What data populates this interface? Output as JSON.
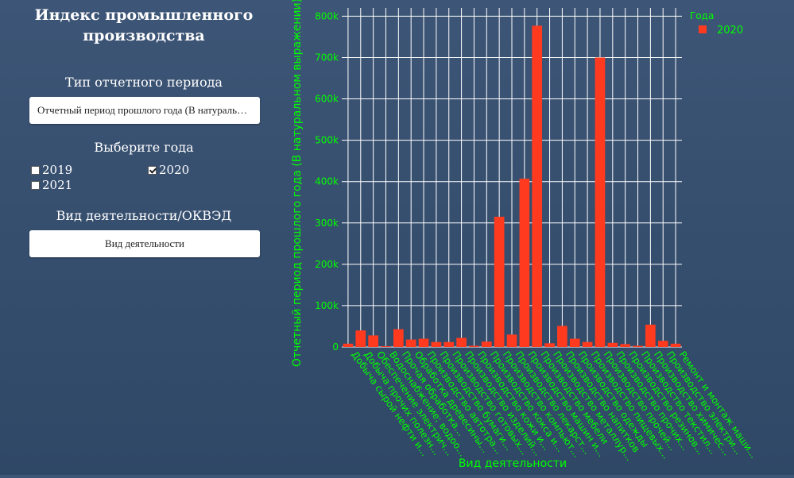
{
  "sidebar": {
    "title": "Индекс промышленного производства",
    "period_label": "Тип отчетного периода",
    "period_value": "Отчетный период прошлого года (В натуральном выражении)",
    "years_label": "Выберите года",
    "years": [
      {
        "label": "2019",
        "checked": false
      },
      {
        "label": "2020",
        "checked": true
      },
      {
        "label": "2021",
        "checked": false
      }
    ],
    "activity_label": "Вид деятельности/ОКВЭД",
    "activity_placeholder": "Вид деятельности"
  },
  "colors": {
    "accent": "#00ff00",
    "bar": "#ff3a1f",
    "background": "#3a5273"
  },
  "chart_data": {
    "type": "bar",
    "title": "",
    "xlabel": "Вид деятельности",
    "ylabel": "Отчетный период прошлого года (В натуральном выражении)",
    "ylim": [
      0,
      820000
    ],
    "yticks": [
      0,
      100000,
      200000,
      300000,
      400000,
      500000,
      600000,
      700000,
      800000
    ],
    "ytick_labels": [
      "0",
      "100k",
      "200k",
      "300k",
      "400k",
      "500k",
      "600k",
      "700k",
      "800k"
    ],
    "legend_title": "Года",
    "legend_position": "top-right",
    "series": [
      {
        "name": "2020"
      }
    ],
    "categories": [
      "Добыча сырой нефти и...",
      "Добыча прочих полезн...",
      "Обеспечение электрич...",
      "Водоснабжение; водоо...",
      "Прочая обработка...",
      "Обработка древесины...",
      "Производство автотра...",
      "Производство бумаги...",
      "Производство готовых...",
      "Производство изделий...",
      "Производство кожи и...",
      "Производство кокса и...",
      "Производство компьют...",
      "Производство лекарст...",
      "Производство машин и...",
      "Производство мебели",
      "Производство металлур...",
      "Производство напитков",
      "Производство одежды",
      "Производство пищевых...",
      "Производство прочей...",
      "Производство прочих...",
      "Производство резинов...",
      "Производство текстил...",
      "Производство химичес...",
      "Производство электри...",
      "Ремонт и монтаж маши..."
    ],
    "values": [
      8000,
      40000,
      28000,
      2000,
      43000,
      18000,
      20000,
      12000,
      12000,
      22000,
      3000,
      13000,
      315000,
      30000,
      407000,
      777000,
      9000,
      51000,
      20000,
      12000,
      700000,
      10000,
      7000,
      3000,
      54000,
      15000,
      8000
    ]
  }
}
